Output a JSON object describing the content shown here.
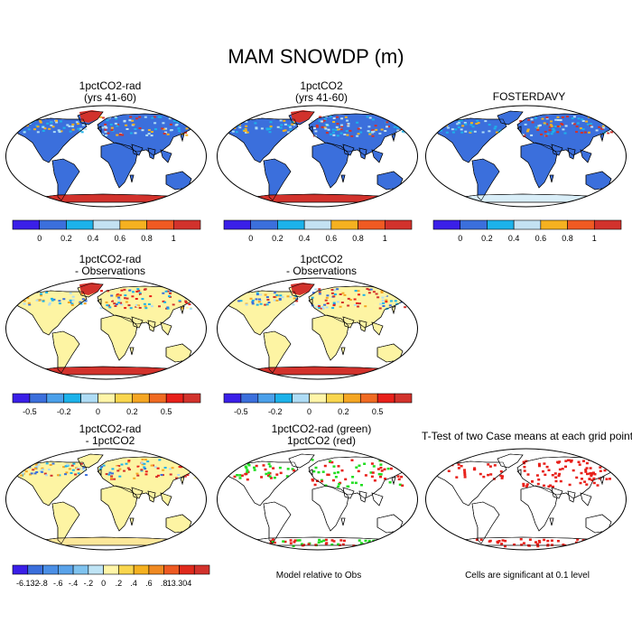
{
  "title": "MAM SNOWDP (m)",
  "panels": [
    {
      "id": "p1",
      "title": [
        "1pctCO2-rad",
        "(yrs 41-60)"
      ],
      "style": "abs-model",
      "bar": 0
    },
    {
      "id": "p2",
      "title": [
        "1pctCO2",
        "(yrs 41-60)"
      ],
      "style": "abs-model",
      "bar": 0
    },
    {
      "id": "p3",
      "title": [
        "FOSTERDAVY"
      ],
      "style": "abs-obs",
      "bar": 0
    },
    {
      "id": "p4",
      "title": [
        "1pctCO2-rad",
        "- Observations"
      ],
      "style": "diff",
      "bar": 1
    },
    {
      "id": "p5",
      "title": [
        "1pctCO2",
        "- Observations"
      ],
      "style": "diff",
      "bar": 1
    },
    {
      "id": "p7",
      "title": [
        "1pctCO2-rad",
        "- 1pctCO2"
      ],
      "style": "case-diff",
      "bar": 2
    },
    {
      "id": "p8",
      "title": [
        "1pctCO2-rad (green)",
        "1pctCO2 (red)"
      ],
      "style": "sig-pair",
      "note": "Model relative to Obs"
    },
    {
      "id": "p9",
      "title": [
        "T-Test of two Case means at each grid point"
      ],
      "style": "sig",
      "note": "Cells are significant at 0.1 level"
    }
  ],
  "colorbars": [
    {
      "colors": [
        "#3a1fe8",
        "#3b6fdc",
        "#1cb2ea",
        "#c3e1f2",
        "#f5b120",
        "#f05a22",
        "#d2322c"
      ],
      "labels": [
        "0",
        "0.2",
        "0.4",
        "0.6",
        "0.8",
        "1"
      ]
    },
    {
      "colors": [
        "#3a1fe8",
        "#3b6fdc",
        "#4ba0ea",
        "#1cb2ea",
        "#aedcf5",
        "#fff5a8",
        "#f9d64e",
        "#f5a623",
        "#f06b22",
        "#e8201a",
        "#d2322c"
      ],
      "labels": [
        "-0.5",
        "-0.2",
        "0",
        "0.2",
        "0.5"
      ],
      "label_at": [
        1,
        3,
        5,
        7,
        9
      ]
    },
    {
      "colors": [
        "#3a1fe8",
        "#3b6fdc",
        "#4b8fe6",
        "#5aa3ea",
        "#7fc3ef",
        "#bfe4f5",
        "#fff5a8",
        "#f9d64e",
        "#f5b120",
        "#f08a22",
        "#ee5a22",
        "#e02a1c",
        "#d2322c"
      ],
      "labels": [
        "-6.132",
        "-.8",
        "-.6",
        "-.4",
        "-.2",
        "0",
        ".2",
        ".4",
        ".6",
        ".8",
        "13.304"
      ]
    }
  ],
  "colors": {
    "land_blue": "#3b6fdc",
    "land_yellow": "#fdf4a3",
    "ice_red": "#d2322c",
    "sig_red": "#e8201a",
    "sig_green": "#22dd22"
  }
}
